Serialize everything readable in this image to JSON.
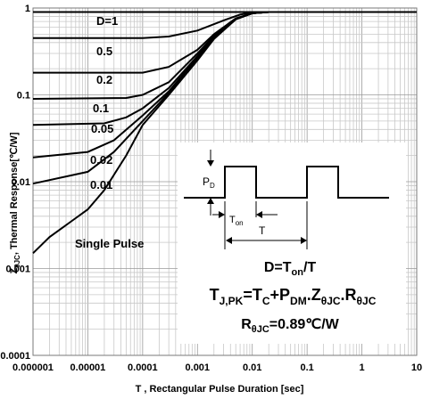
{
  "chart_data": {
    "type": "line",
    "xscale": "log",
    "yscale": "log",
    "xlim": [
      1e-06,
      10
    ],
    "ylim": [
      0.0001,
      1
    ],
    "x_ticks": [
      "0.000001",
      "0.00001",
      "0.0001",
      "0.001",
      "0.01",
      "0.1",
      "1",
      "10"
    ],
    "y_ticks": [
      "1",
      "0.1",
      "0.01",
      "0.001",
      "0.0001"
    ],
    "xlabel": "T , Rectangular Pulse Duration [sec]",
    "ylabel_prefix": "Z",
    "ylabel_sub": "θJC",
    "ylabel_rest": ", Thermal Response[℃/W]",
    "grid": true,
    "series": [
      {
        "name": "D=1",
        "points": [
          [
            1e-06,
            0.9
          ],
          [
            10,
            0.9
          ]
        ]
      },
      {
        "name": "0.5",
        "points": [
          [
            1e-06,
            0.45
          ],
          [
            0.0001,
            0.45
          ],
          [
            0.0003,
            0.47
          ],
          [
            0.001,
            0.55
          ],
          [
            0.003,
            0.72
          ],
          [
            0.006,
            0.84
          ],
          [
            0.01,
            0.89
          ],
          [
            0.02,
            0.9
          ],
          [
            10,
            0.9
          ]
        ]
      },
      {
        "name": "0.2",
        "points": [
          [
            1e-06,
            0.18
          ],
          [
            0.0001,
            0.18
          ],
          [
            0.0003,
            0.21
          ],
          [
            0.001,
            0.33
          ],
          [
            0.002,
            0.5
          ],
          [
            0.005,
            0.76
          ],
          [
            0.01,
            0.87
          ],
          [
            0.02,
            0.9
          ],
          [
            10,
            0.9
          ]
        ]
      },
      {
        "name": "0.1",
        "points": [
          [
            1e-06,
            0.09
          ],
          [
            5e-05,
            0.092
          ],
          [
            0.0001,
            0.1
          ],
          [
            0.0003,
            0.14
          ],
          [
            0.001,
            0.3
          ],
          [
            0.002,
            0.48
          ],
          [
            0.005,
            0.75
          ],
          [
            0.01,
            0.87
          ],
          [
            0.02,
            0.9
          ],
          [
            10,
            0.9
          ]
        ]
      },
      {
        "name": "0.05",
        "points": [
          [
            1e-06,
            0.045
          ],
          [
            2e-05,
            0.047
          ],
          [
            5e-05,
            0.055
          ],
          [
            0.0001,
            0.07
          ],
          [
            0.0003,
            0.12
          ],
          [
            0.001,
            0.28
          ],
          [
            0.002,
            0.47
          ],
          [
            0.005,
            0.75
          ],
          [
            0.01,
            0.87
          ],
          [
            0.02,
            0.9
          ],
          [
            10,
            0.9
          ]
        ]
      },
      {
        "name": "0.02",
        "points": [
          [
            1e-06,
            0.019
          ],
          [
            1e-05,
            0.022
          ],
          [
            3e-05,
            0.03
          ],
          [
            0.0001,
            0.058
          ],
          [
            0.0003,
            0.11
          ],
          [
            0.001,
            0.27
          ],
          [
            0.002,
            0.46
          ],
          [
            0.005,
            0.75
          ],
          [
            0.01,
            0.87
          ],
          [
            0.02,
            0.9
          ],
          [
            10,
            0.9
          ]
        ]
      },
      {
        "name": "0.01",
        "points": [
          [
            1e-06,
            0.0095
          ],
          [
            1e-05,
            0.013
          ],
          [
            3e-05,
            0.022
          ],
          [
            0.0001,
            0.05
          ],
          [
            0.0003,
            0.105
          ],
          [
            0.001,
            0.26
          ],
          [
            0.002,
            0.45
          ],
          [
            0.005,
            0.74
          ],
          [
            0.01,
            0.87
          ],
          [
            0.02,
            0.9
          ],
          [
            10,
            0.9
          ]
        ]
      },
      {
        "name": "Single Pulse",
        "points": [
          [
            1e-06,
            0.0015
          ],
          [
            2e-06,
            0.0023
          ],
          [
            5e-06,
            0.0035
          ],
          [
            1e-05,
            0.0048
          ],
          [
            2e-05,
            0.008
          ],
          [
            5e-05,
            0.02
          ],
          [
            0.0001,
            0.045
          ],
          [
            0.0003,
            0.1
          ],
          [
            0.001,
            0.25
          ],
          [
            0.002,
            0.44
          ],
          [
            0.005,
            0.74
          ],
          [
            0.01,
            0.87
          ],
          [
            0.02,
            0.9
          ],
          [
            10,
            0.9
          ]
        ]
      }
    ],
    "inset": {
      "pd_label": "P",
      "pd_sub": "D",
      "ton_label": "T",
      "ton_sub": "on",
      "t_label": "T",
      "duty_main": "D=T",
      "duty_sub": "on",
      "duty_rest": "/T",
      "eq_tj": "T",
      "eq_tj_sub": "J,PK",
      "eq_eq1": "=T",
      "eq_tc_sub": "C",
      "eq_plus": "+P",
      "eq_pdm_sub": "DM",
      "eq_dot1": ".Z",
      "eq_z_sub": "θJC",
      "eq_dot2": ".R",
      "eq_r_sub": "θJC",
      "r_main": "R",
      "r_sub": "θJC",
      "r_rest": "=0.89℃/W"
    },
    "label_positions": [
      "D=1",
      "0.5",
      "0.2",
      "0.1",
      "0.05",
      "0.02",
      "0.01",
      "Single Pulse"
    ]
  }
}
